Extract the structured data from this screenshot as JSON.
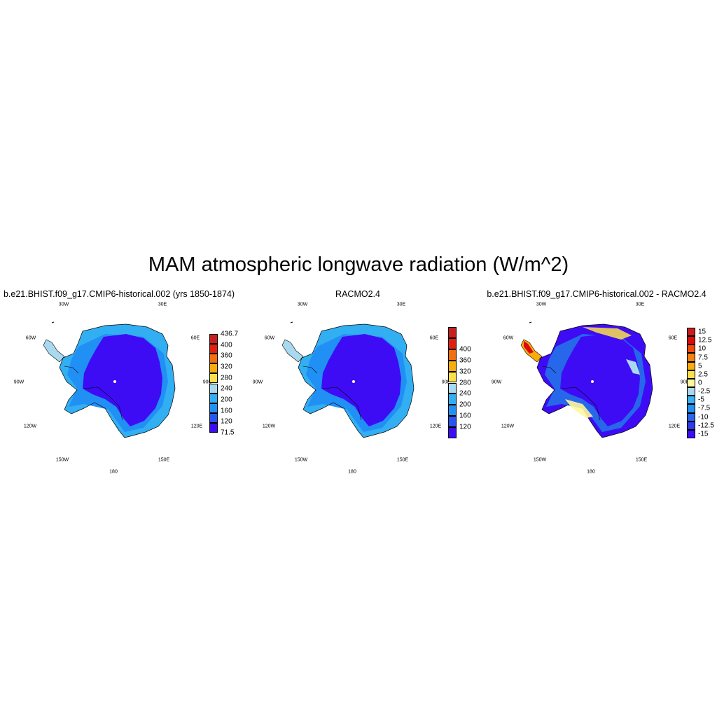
{
  "title": "MAM atmospheric longwave radiation (W/m^2)",
  "lon_labels": {
    "n30w": "30W",
    "n30e": "30E",
    "w60": "60W",
    "e60": "60E",
    "w90": "90W",
    "e90": "90E",
    "w120": "120W",
    "e120": "120E",
    "s150w": "150W",
    "s150e": "150E",
    "s180": "180"
  },
  "panels": [
    {
      "title": "b.e21.BHIST.f09_g17.CMIP6-historical.002 (yrs 1850-1874)",
      "colorbar": {
        "colors": [
          "#3d0cf5",
          "#2755f2",
          "#2190f5",
          "#32aef2",
          "#a9d9ef",
          "#fbe04a",
          "#fbac0d",
          "#f36e0c",
          "#e01f0e",
          "#c5201d"
        ],
        "labels": [
          "71.5",
          "120",
          "160",
          "200",
          "240",
          "280",
          "320",
          "360",
          "400",
          "436.7"
        ]
      }
    },
    {
      "title": "RACMO2.4",
      "colorbar": {
        "colors": [
          "#3d0cf5",
          "#2755f2",
          "#2190f5",
          "#32aef2",
          "#a9d9ef",
          "#fbe04a",
          "#fbac0d",
          "#f36e0c",
          "#e01f0e",
          "#c5201d"
        ],
        "labels": [
          "120",
          "160",
          "200",
          "240",
          "280",
          "320",
          "360",
          "400"
        ]
      }
    },
    {
      "title": "b.e21.BHIST.f09_g17.CMIP6-historical.002 - RACMO2.4",
      "colorbar": {
        "colors": [
          "#3d0cf5",
          "#2f3ae8",
          "#2767ea",
          "#2190f5",
          "#3bb1f1",
          "#a9d9ef",
          "#fff7a0",
          "#fbe04a",
          "#fbac0d",
          "#f77f0f",
          "#f04a0b",
          "#dc0a0a",
          "#c5201d"
        ],
        "labels": [
          "-15",
          "-12.5",
          "-10",
          "-7.5",
          "-5",
          "-2.5",
          "0",
          "2.5",
          "5",
          "7.5",
          "10",
          "12.5",
          "15"
        ]
      }
    }
  ]
}
